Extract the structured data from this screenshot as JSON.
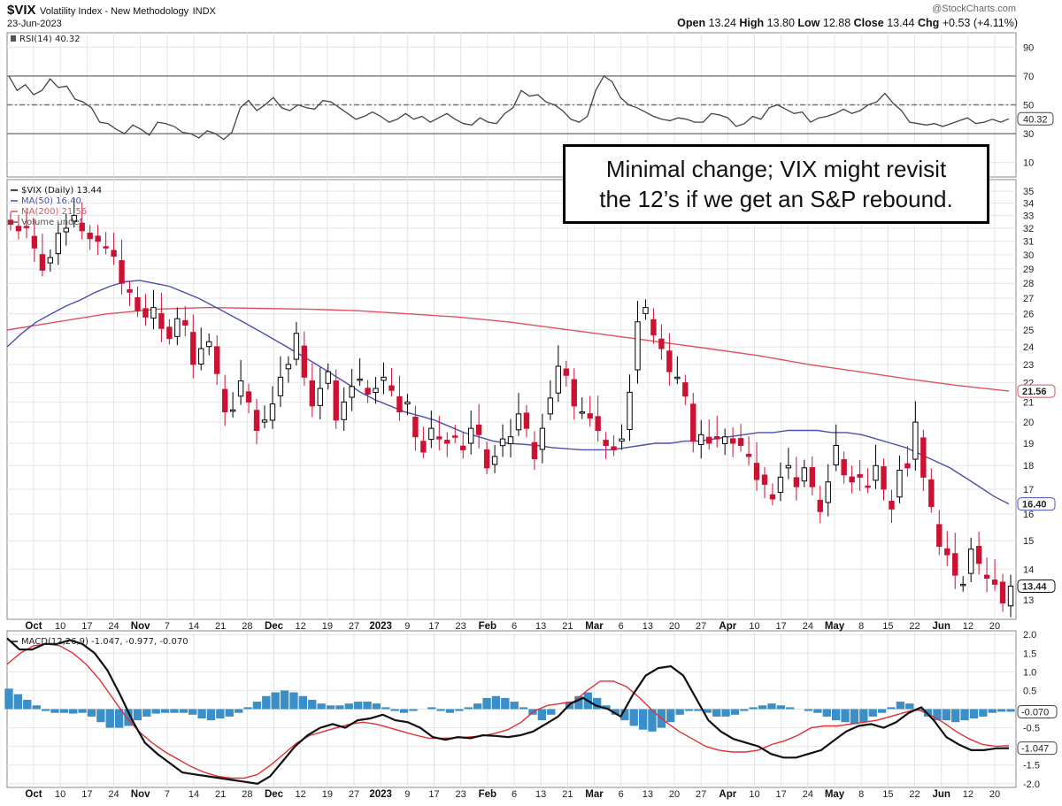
{
  "header": {
    "symbol": "$VIX",
    "name": "Volatility Index - New Methodology",
    "exchange": "INDX",
    "date": "23-Jun-2023",
    "watermark": "@StockCharts.com",
    "ohlc": {
      "open_label": "Open",
      "open": "13.24",
      "high_label": "High",
      "high": "13.80",
      "low_label": "Low",
      "low": "12.88",
      "close_label": "Close",
      "close": "13.44",
      "chg_label": "Chg",
      "chg": "+0.53 (+4.11%)"
    }
  },
  "annotation": {
    "line1": "Minimal change; VIX might revisit",
    "line2": "the 12’s if we get an S&P rebound."
  },
  "chart_data": [
    {
      "panel": "rsi",
      "type": "line",
      "legend": "RSI(14) 40.32",
      "ylim": [
        0,
        100
      ],
      "ticks": [
        10,
        30,
        50,
        70,
        90
      ],
      "reference_lines": [
        30,
        50,
        70
      ],
      "last_value": "40.32",
      "series": [
        {
          "name": "RSI(14)",
          "color": "#444444",
          "values": [
            70,
            60,
            64,
            57,
            60,
            68,
            62,
            63,
            54,
            52,
            48,
            38,
            37,
            33,
            30,
            36,
            33,
            29,
            38,
            37,
            35,
            31,
            30,
            27,
            32,
            30,
            26,
            31,
            48,
            53,
            46,
            50,
            55,
            48,
            46,
            50,
            48,
            47,
            53,
            52,
            48,
            44,
            40,
            42,
            45,
            42,
            38,
            40,
            44,
            40,
            42,
            38,
            41,
            44,
            40,
            37,
            36,
            41,
            38,
            37,
            44,
            48,
            60,
            56,
            57,
            52,
            50,
            46,
            40,
            38,
            42,
            60,
            70,
            66,
            55,
            50,
            48,
            45,
            42,
            40,
            39,
            41,
            40,
            38,
            38,
            44,
            43,
            41,
            35,
            37,
            42,
            40,
            48,
            50,
            47,
            44,
            45,
            38,
            41,
            42,
            44,
            47,
            44,
            46,
            50,
            52,
            58,
            51,
            46,
            38,
            37,
            36,
            37,
            35,
            37,
            39,
            41,
            37,
            38,
            40,
            38,
            40.32
          ]
        }
      ]
    },
    {
      "panel": "price",
      "type": "candlestick",
      "legend": [
        "$VIX (Daily) 13.44",
        "MA(50) 16.40",
        "MA(200) 21.56",
        "Volume undef"
      ],
      "y_scale": "log",
      "ylim": [
        12.4,
        36
      ],
      "ticks": [
        13,
        14,
        15,
        16,
        17,
        18,
        19,
        20,
        21,
        22,
        23,
        24,
        25,
        26,
        27,
        28,
        29,
        30,
        31,
        32,
        33,
        34,
        35
      ],
      "last_close_label": "13.44",
      "ma50_label": "16.40",
      "ma200_label": "21.56",
      "closes": [
        32.3,
        31.8,
        32.1,
        30.5,
        28.9,
        29.8,
        31.6,
        32.0,
        33.0,
        31.8,
        31.2,
        31.0,
        30.5,
        29.9,
        28.0,
        27.4,
        26.2,
        25.8,
        26.4,
        25.1,
        24.5,
        25.7,
        25.3,
        23.0,
        23.9,
        24.3,
        22.5,
        20.5,
        20.6,
        22.1,
        21.0,
        19.6,
        20.1,
        20.9,
        22.3,
        23.0,
        24.8,
        22.3,
        20.8,
        21.7,
        22.6,
        20.1,
        21.0,
        21.8,
        22.2,
        21.4,
        21.7,
        22.3,
        21.6,
        20.5,
        21.0,
        19.3,
        18.6,
        19.7,
        19.2,
        19.0,
        19.3,
        18.7,
        19.7,
        19.4,
        17.9,
        18.4,
        19.2,
        19.3,
        20.4,
        19.7,
        18.3,
        19.7,
        21.2,
        22.9,
        22.4,
        20.8,
        20.5,
        20.2,
        19.6,
        18.9,
        18.7,
        19.2,
        21.5,
        25.5,
        26.4,
        24.7,
        23.9,
        22.6,
        22.3,
        21.3,
        19.1,
        19.4,
        19.0,
        19.2,
        19.3,
        19.0,
        18.9,
        18.4,
        17.4,
        17.2,
        16.6,
        17.5,
        18.0,
        17.1,
        17.9,
        17.1,
        16.1,
        17.3,
        18.9,
        17.6,
        17.3,
        17.5,
        17.1,
        18.0,
        17.0,
        16.2,
        17.8,
        17.9,
        20.0,
        17.5,
        16.3,
        14.8,
        14.5,
        13.8,
        13.5,
        14.7,
        14.2,
        13.7,
        13.5,
        12.9,
        13.44
      ],
      "ma50": [
        24.0,
        24.8,
        25.5,
        26.0,
        26.5,
        26.9,
        27.4,
        27.8,
        28.1,
        28.2,
        28.0,
        27.8,
        27.4,
        27.0,
        26.5,
        26.0,
        25.5,
        25.0,
        24.5,
        24.0,
        23.5,
        23.0,
        22.5,
        22.0,
        21.5,
        21.1,
        20.8,
        20.5,
        20.3,
        20.1,
        19.8,
        19.5,
        19.3,
        19.1,
        19.0,
        18.95,
        18.9,
        18.8,
        18.75,
        18.7,
        18.7,
        18.7,
        18.8,
        18.9,
        19.0,
        19.0,
        19.1,
        19.1,
        19.2,
        19.3,
        19.4,
        19.5,
        19.5,
        19.6,
        19.6,
        19.6,
        19.5,
        19.5,
        19.4,
        19.2,
        19.0,
        18.8,
        18.5,
        18.2,
        17.9,
        17.5,
        17.1,
        16.7,
        16.4
      ],
      "ma200": [
        25.0,
        25.5,
        26.0,
        26.3,
        26.4,
        26.35,
        26.3,
        26.2,
        26.0,
        25.8,
        25.5,
        25.1,
        24.7,
        24.3,
        23.9,
        23.5,
        23.0,
        22.6,
        22.2,
        21.85,
        21.56
      ],
      "series": [
        {
          "name": "$VIX (Daily)",
          "color_up": "#000000",
          "color_down": "#cc1133"
        },
        {
          "name": "MA(50)",
          "color": "#4a4fb0"
        },
        {
          "name": "MA(200)",
          "color": "#e05060"
        }
      ]
    },
    {
      "panel": "macd",
      "type": "line",
      "legend": "MACD(12,26,9) -1.047, -0.977, -0.070",
      "ylim": [
        -2.1,
        2.1
      ],
      "ticks": [
        -2.0,
        -1.5,
        -1.0,
        -0.5,
        0,
        0.5,
        1.0,
        1.5,
        2.0
      ],
      "last_labels": [
        "-0.070",
        "-1.047"
      ],
      "macd_values": [
        1.9,
        1.6,
        1.6,
        1.75,
        1.75,
        1.85,
        1.75,
        1.5,
        1.05,
        0.4,
        -0.3,
        -0.9,
        -1.2,
        -1.45,
        -1.7,
        -1.75,
        -1.8,
        -1.85,
        -1.9,
        -1.95,
        -2.0,
        -1.8,
        -1.4,
        -1.0,
        -0.7,
        -0.5,
        -0.4,
        -0.5,
        -0.3,
        -0.25,
        -0.15,
        -0.3,
        -0.35,
        -0.5,
        -0.75,
        -0.82,
        -0.75,
        -0.78,
        -0.7,
        -0.72,
        -0.75,
        -0.7,
        -0.6,
        -0.4,
        -0.2,
        0.15,
        0.3,
        0.1,
        0.0,
        -0.2,
        0.4,
        0.9,
        1.1,
        1.15,
        0.9,
        0.3,
        -0.3,
        -0.6,
        -0.8,
        -0.9,
        -1.0,
        -1.2,
        -1.3,
        -1.3,
        -1.2,
        -1.1,
        -0.85,
        -0.6,
        -0.45,
        -0.4,
        -0.5,
        -0.35,
        -0.1,
        0.05,
        -0.3,
        -0.75,
        -0.95,
        -1.1,
        -1.1,
        -1.05,
        -1.047
      ],
      "signal_values": [
        1.2,
        1.5,
        1.7,
        1.75,
        1.7,
        1.5,
        1.2,
        0.8,
        0.3,
        -0.2,
        -0.6,
        -0.9,
        -1.15,
        -1.35,
        -1.55,
        -1.7,
        -1.8,
        -1.85,
        -1.85,
        -1.75,
        -1.5,
        -1.2,
        -0.9,
        -0.7,
        -0.6,
        -0.5,
        -0.4,
        -0.35,
        -0.4,
        -0.5,
        -0.6,
        -0.7,
        -0.78,
        -0.78,
        -0.77,
        -0.75,
        -0.72,
        -0.65,
        -0.55,
        -0.35,
        -0.05,
        0.1,
        0.15,
        0.2,
        0.5,
        0.75,
        0.75,
        0.6,
        0.3,
        -0.05,
        -0.35,
        -0.6,
        -0.8,
        -1.0,
        -1.1,
        -1.15,
        -1.15,
        -1.1,
        -0.95,
        -0.85,
        -0.7,
        -0.5,
        -0.45,
        -0.45,
        -0.4,
        -0.35,
        -0.3,
        -0.2,
        -0.1,
        0.0,
        -0.15,
        -0.35,
        -0.6,
        -0.8,
        -0.95,
        -1.0,
        -0.977
      ],
      "histogram_values": [
        0.55,
        0.4,
        0.25,
        0.1,
        -0.05,
        -0.1,
        -0.1,
        -0.12,
        -0.1,
        -0.2,
        -0.35,
        -0.5,
        -0.5,
        -0.45,
        -0.3,
        -0.2,
        -0.12,
        -0.1,
        -0.1,
        -0.1,
        -0.15,
        -0.25,
        -0.3,
        -0.25,
        -0.2,
        -0.1,
        0.05,
        0.2,
        0.35,
        0.45,
        0.5,
        0.45,
        0.35,
        0.25,
        0.15,
        0.1,
        0.1,
        0.15,
        0.2,
        0.2,
        0.15,
        0.05,
        -0.05,
        -0.1,
        -0.05,
        0.0,
        0.05,
        -0.05,
        -0.1,
        -0.05,
        0.05,
        0.15,
        0.3,
        0.35,
        0.3,
        0.2,
        0.05,
        -0.15,
        -0.3,
        -0.15,
        0.0,
        0.2,
        0.35,
        0.45,
        0.3,
        0.1,
        -0.15,
        -0.3,
        -0.45,
        -0.55,
        -0.6,
        -0.5,
        -0.35,
        -0.15,
        -0.05,
        -0.05,
        -0.1,
        -0.2,
        -0.2,
        -0.15,
        -0.05,
        0.05,
        0.1,
        0.15,
        0.1,
        0.05,
        0.0,
        -0.05,
        -0.1,
        -0.2,
        -0.3,
        -0.35,
        -0.4,
        -0.35,
        -0.2,
        -0.1,
        0.05,
        0.2,
        0.15,
        -0.05,
        -0.2,
        -0.3,
        -0.3,
        -0.35,
        -0.3,
        -0.25,
        -0.2,
        -0.1,
        -0.07,
        -0.07
      ],
      "series": [
        {
          "name": "MACD",
          "color": "#111111"
        },
        {
          "name": "Signal",
          "color": "#e03030"
        },
        {
          "name": "Histogram",
          "color": "#3a8fc8"
        }
      ]
    }
  ],
  "x_axis": {
    "labels": [
      {
        "text": "Oct",
        "bold": true
      },
      {
        "text": "10"
      },
      {
        "text": "17"
      },
      {
        "text": "24"
      },
      {
        "text": "Nov",
        "bold": true
      },
      {
        "text": "7"
      },
      {
        "text": "14"
      },
      {
        "text": "21"
      },
      {
        "text": "28"
      },
      {
        "text": "Dec",
        "bold": true
      },
      {
        "text": "12"
      },
      {
        "text": "19"
      },
      {
        "text": "27"
      },
      {
        "text": "2023",
        "bold": true
      },
      {
        "text": "9"
      },
      {
        "text": "17"
      },
      {
        "text": "23"
      },
      {
        "text": "Feb",
        "bold": true
      },
      {
        "text": "6"
      },
      {
        "text": "13"
      },
      {
        "text": "21"
      },
      {
        "text": "Mar",
        "bold": true
      },
      {
        "text": "6"
      },
      {
        "text": "13"
      },
      {
        "text": "20"
      },
      {
        "text": "27"
      },
      {
        "text": "Apr",
        "bold": true
      },
      {
        "text": "10"
      },
      {
        "text": "17"
      },
      {
        "text": "24"
      },
      {
        "text": "May",
        "bold": true
      },
      {
        "text": "8"
      },
      {
        "text": "15"
      },
      {
        "text": "22"
      },
      {
        "text": "Jun",
        "bold": true
      },
      {
        "text": "12"
      },
      {
        "text": "20"
      }
    ]
  }
}
